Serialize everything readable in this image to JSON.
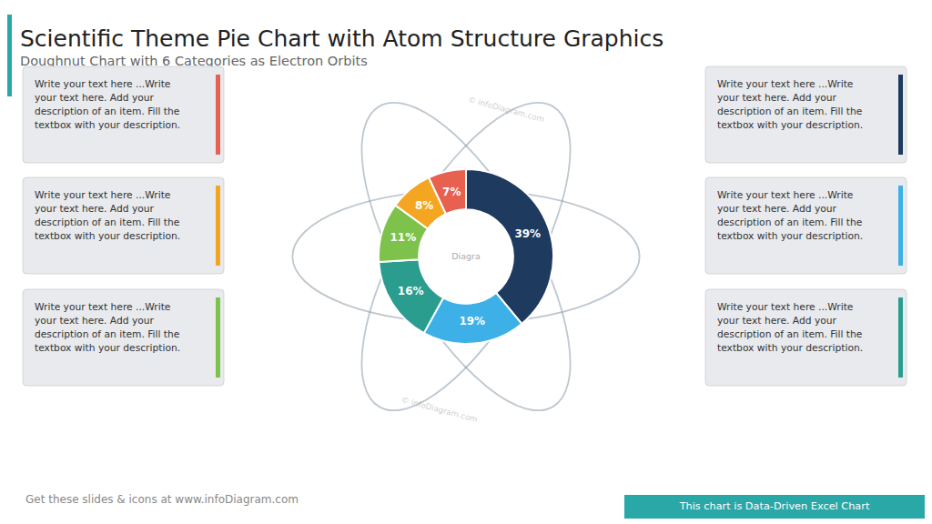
{
  "chart_data": {
    "type": "doughnut",
    "title": "Scientific Theme Pie Chart with Atom Structure Graphics",
    "subtitle": "Doughnut Chart with 6 Categories as Electron Orbits",
    "values": [
      39,
      19,
      16,
      11,
      8,
      7
    ],
    "value_labels": [
      "39%",
      "19%",
      "16%",
      "11%",
      "8%",
      "7%"
    ],
    "data_labels": true,
    "colors": [
      "#1e3a5f",
      "#3db0e8",
      "#2a9d8f",
      "#7dc24b",
      "#f4a623",
      "#e86050"
    ],
    "annotations": [
      "Write your text here ...Write\nyour text here. Add your\ndescription of an item. Fill the\ntextbox with your description.",
      "Write your text here ...Write\nyour text here. Add your\ndescription of an item. Fill the\ntextbox with your description.",
      "Write your text here ...Write\nyour text here. Add your\ndescription of an item. Fill the\ntextbox with your description.",
      "Write your text here ...Write\nyour text here. Add your\ndescription of an item. Fill the\ntextbox with your description.",
      "Write your text here ...Write\nyour text here. Add your\ndescription of an item. Fill the\ntextbox with your description.",
      "Write your text here ...Write\nyour text here. Add your\ndescription of an item. Fill the\ntextbox with your description.",
      "© infoDiagram.com",
      "© infoDiagram.com",
      "Diagra",
      "Get these slides & icons at www.infoDiagram.com",
      "This chart is Data-Driven Excel Chart"
    ]
  }
}
